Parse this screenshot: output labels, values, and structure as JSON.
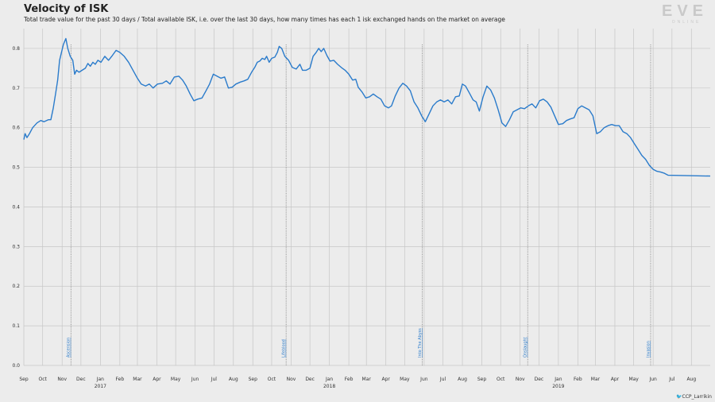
{
  "title": "Velocity of ISK",
  "subtitle": "Total trade value for the past 30 days / Total available ISK, i.e. over the last 30 days, how many times has each 1 isk exchanged hands on the market on average",
  "logo": {
    "text": "EVE",
    "subtext": "ONLINE"
  },
  "credit": {
    "icon": "twitter-bird-icon",
    "handle": "CCP_Larrikin"
  },
  "colors": {
    "line": "#2a7bcb",
    "grid": "#c6c6c6",
    "annotation": "#2a7bcb",
    "background": "#ececec"
  },
  "chart_data": {
    "type": "line",
    "title": "Velocity of ISK",
    "xlabel": "",
    "ylabel": "",
    "x_range": [
      "2016-09-01",
      "2019-08-31"
    ],
    "ylim": [
      0,
      0.85
    ],
    "yticks": [
      "0.0",
      "0.1",
      "0.2",
      "0.3",
      "0.4",
      "0.5",
      "0.6",
      "0.7",
      "0.8"
    ],
    "grid": true,
    "xticks": [
      {
        "month": "Sep",
        "year": ""
      },
      {
        "month": "Oct",
        "year": ""
      },
      {
        "month": "Nov",
        "year": ""
      },
      {
        "month": "Dec",
        "year": ""
      },
      {
        "month": "Jan",
        "year": "2017"
      },
      {
        "month": "Feb",
        "year": ""
      },
      {
        "month": "Mar",
        "year": ""
      },
      {
        "month": "Apr",
        "year": ""
      },
      {
        "month": "May",
        "year": ""
      },
      {
        "month": "Jun",
        "year": ""
      },
      {
        "month": "Jul",
        "year": ""
      },
      {
        "month": "Aug",
        "year": ""
      },
      {
        "month": "Sep",
        "year": ""
      },
      {
        "month": "Oct",
        "year": ""
      },
      {
        "month": "Nov",
        "year": ""
      },
      {
        "month": "Dec",
        "year": ""
      },
      {
        "month": "Jan",
        "year": "2018"
      },
      {
        "month": "Feb",
        "year": ""
      },
      {
        "month": "Mar",
        "year": ""
      },
      {
        "month": "Apr",
        "year": ""
      },
      {
        "month": "May",
        "year": ""
      },
      {
        "month": "Jun",
        "year": ""
      },
      {
        "month": "Jul",
        "year": ""
      },
      {
        "month": "Aug",
        "year": ""
      },
      {
        "month": "Sep",
        "year": ""
      },
      {
        "month": "Oct",
        "year": ""
      },
      {
        "month": "Nov",
        "year": ""
      },
      {
        "month": "Dec",
        "year": ""
      },
      {
        "month": "Jan",
        "year": "2019"
      },
      {
        "month": "Feb",
        "year": ""
      },
      {
        "month": "Mar",
        "year": ""
      },
      {
        "month": "Apr",
        "year": ""
      },
      {
        "month": "May",
        "year": ""
      },
      {
        "month": "Jun",
        "year": ""
      },
      {
        "month": "Jul",
        "year": ""
      },
      {
        "month": "Aug",
        "year": ""
      }
    ],
    "annotations": [
      {
        "label": "Ascension",
        "date": "2016-11-15"
      },
      {
        "label": "Lifeblood",
        "date": "2017-10-24"
      },
      {
        "label": "Into The Abyss",
        "date": "2018-05-29"
      },
      {
        "label": "Onslaught",
        "date": "2018-11-13"
      },
      {
        "label": "Invasion",
        "date": "2019-05-28"
      }
    ],
    "series": [
      {
        "color": "#2a7bcb",
        "points": [
          [
            "2016-09-01",
            0.57
          ],
          [
            "2016-09-03",
            0.585
          ],
          [
            "2016-09-06",
            0.575
          ],
          [
            "2016-09-10",
            0.585
          ],
          [
            "2016-09-15",
            0.6
          ],
          [
            "2016-09-22",
            0.612
          ],
          [
            "2016-09-28",
            0.618
          ],
          [
            "2016-10-03",
            0.615
          ],
          [
            "2016-10-10",
            0.62
          ],
          [
            "2016-10-14",
            0.62
          ],
          [
            "2016-10-18",
            0.65
          ],
          [
            "2016-10-22",
            0.69
          ],
          [
            "2016-10-25",
            0.72
          ],
          [
            "2016-10-28",
            0.77
          ],
          [
            "2016-10-31",
            0.79
          ],
          [
            "2016-11-03",
            0.81
          ],
          [
            "2016-11-07",
            0.825
          ],
          [
            "2016-11-10",
            0.8
          ],
          [
            "2016-11-14",
            0.78
          ],
          [
            "2016-11-18",
            0.77
          ],
          [
            "2016-11-21",
            0.735
          ],
          [
            "2016-11-24",
            0.745
          ],
          [
            "2016-11-28",
            0.74
          ],
          [
            "2016-12-03",
            0.745
          ],
          [
            "2016-12-08",
            0.75
          ],
          [
            "2016-12-12",
            0.762
          ],
          [
            "2016-12-16",
            0.755
          ],
          [
            "2016-12-20",
            0.765
          ],
          [
            "2016-12-24",
            0.76
          ],
          [
            "2016-12-28",
            0.77
          ],
          [
            "2017-01-02",
            0.765
          ],
          [
            "2017-01-08",
            0.78
          ],
          [
            "2017-01-14",
            0.77
          ],
          [
            "2017-01-20",
            0.782
          ],
          [
            "2017-01-26",
            0.795
          ],
          [
            "2017-02-01",
            0.79
          ],
          [
            "2017-02-08",
            0.78
          ],
          [
            "2017-02-15",
            0.765
          ],
          [
            "2017-02-22",
            0.745
          ],
          [
            "2017-03-01",
            0.725
          ],
          [
            "2017-03-07",
            0.71
          ],
          [
            "2017-03-14",
            0.705
          ],
          [
            "2017-03-20",
            0.71
          ],
          [
            "2017-03-26",
            0.7
          ],
          [
            "2017-04-02",
            0.71
          ],
          [
            "2017-04-10",
            0.712
          ],
          [
            "2017-04-16",
            0.718
          ],
          [
            "2017-04-22",
            0.71
          ],
          [
            "2017-04-29",
            0.728
          ],
          [
            "2017-05-06",
            0.73
          ],
          [
            "2017-05-12",
            0.72
          ],
          [
            "2017-05-18",
            0.705
          ],
          [
            "2017-05-24",
            0.685
          ],
          [
            "2017-05-30",
            0.668
          ],
          [
            "2017-06-05",
            0.672
          ],
          [
            "2017-06-12",
            0.675
          ],
          [
            "2017-06-18",
            0.692
          ],
          [
            "2017-06-24",
            0.71
          ],
          [
            "2017-06-30",
            0.735
          ],
          [
            "2017-07-06",
            0.73
          ],
          [
            "2017-07-12",
            0.725
          ],
          [
            "2017-07-18",
            0.728
          ],
          [
            "2017-07-24",
            0.7
          ],
          [
            "2017-07-30",
            0.702
          ],
          [
            "2017-08-05",
            0.71
          ],
          [
            "2017-08-12",
            0.715
          ],
          [
            "2017-08-18",
            0.718
          ],
          [
            "2017-08-24",
            0.722
          ],
          [
            "2017-08-30",
            0.74
          ],
          [
            "2017-09-04",
            0.752
          ],
          [
            "2017-09-08",
            0.765
          ],
          [
            "2017-09-12",
            0.768
          ],
          [
            "2017-09-16",
            0.775
          ],
          [
            "2017-09-20",
            0.772
          ],
          [
            "2017-09-23",
            0.78
          ],
          [
            "2017-09-27",
            0.765
          ],
          [
            "2017-10-01",
            0.775
          ],
          [
            "2017-10-06",
            0.778
          ],
          [
            "2017-10-10",
            0.79
          ],
          [
            "2017-10-13",
            0.805
          ],
          [
            "2017-10-17",
            0.8
          ],
          [
            "2017-10-22",
            0.78
          ],
          [
            "2017-10-28",
            0.77
          ],
          [
            "2017-11-03",
            0.752
          ],
          [
            "2017-11-09",
            0.748
          ],
          [
            "2017-11-15",
            0.76
          ],
          [
            "2017-11-19",
            0.745
          ],
          [
            "2017-11-25",
            0.745
          ],
          [
            "2017-12-01",
            0.75
          ],
          [
            "2017-12-06",
            0.78
          ],
          [
            "2017-12-11",
            0.79
          ],
          [
            "2017-12-15",
            0.8
          ],
          [
            "2017-12-19",
            0.792
          ],
          [
            "2017-12-23",
            0.8
          ],
          [
            "2017-12-28",
            0.782
          ],
          [
            "2018-01-02",
            0.768
          ],
          [
            "2018-01-08",
            0.77
          ],
          [
            "2018-01-14",
            0.76
          ],
          [
            "2018-01-20",
            0.752
          ],
          [
            "2018-01-26",
            0.745
          ],
          [
            "2018-02-01",
            0.735
          ],
          [
            "2018-02-07",
            0.72
          ],
          [
            "2018-02-12",
            0.722
          ],
          [
            "2018-02-16",
            0.702
          ],
          [
            "2018-02-22",
            0.69
          ],
          [
            "2018-02-28",
            0.675
          ],
          [
            "2018-03-06",
            0.678
          ],
          [
            "2018-03-12",
            0.685
          ],
          [
            "2018-03-18",
            0.678
          ],
          [
            "2018-03-24",
            0.672
          ],
          [
            "2018-03-30",
            0.655
          ],
          [
            "2018-04-05",
            0.65
          ],
          [
            "2018-04-10",
            0.655
          ],
          [
            "2018-04-16",
            0.68
          ],
          [
            "2018-04-22",
            0.7
          ],
          [
            "2018-04-28",
            0.712
          ],
          [
            "2018-05-04",
            0.705
          ],
          [
            "2018-05-10",
            0.693
          ],
          [
            "2018-05-16",
            0.665
          ],
          [
            "2018-05-22",
            0.65
          ],
          [
            "2018-05-28",
            0.63
          ],
          [
            "2018-06-03",
            0.615
          ],
          [
            "2018-06-09",
            0.635
          ],
          [
            "2018-06-15",
            0.655
          ],
          [
            "2018-06-21",
            0.665
          ],
          [
            "2018-06-27",
            0.67
          ],
          [
            "2018-07-03",
            0.665
          ],
          [
            "2018-07-09",
            0.67
          ],
          [
            "2018-07-15",
            0.66
          ],
          [
            "2018-07-21",
            0.678
          ],
          [
            "2018-07-27",
            0.68
          ],
          [
            "2018-08-01",
            0.71
          ],
          [
            "2018-08-06",
            0.705
          ],
          [
            "2018-08-12",
            0.688
          ],
          [
            "2018-08-18",
            0.67
          ],
          [
            "2018-08-23",
            0.665
          ],
          [
            "2018-08-28",
            0.642
          ],
          [
            "2018-09-03",
            0.678
          ],
          [
            "2018-09-09",
            0.705
          ],
          [
            "2018-09-15",
            0.695
          ],
          [
            "2018-09-21",
            0.675
          ],
          [
            "2018-09-27",
            0.645
          ],
          [
            "2018-10-03",
            0.612
          ],
          [
            "2018-10-09",
            0.603
          ],
          [
            "2018-10-15",
            0.62
          ],
          [
            "2018-10-21",
            0.64
          ],
          [
            "2018-10-27",
            0.645
          ],
          [
            "2018-11-02",
            0.65
          ],
          [
            "2018-11-08",
            0.648
          ],
          [
            "2018-11-14",
            0.655
          ],
          [
            "2018-11-20",
            0.66
          ],
          [
            "2018-11-26",
            0.65
          ],
          [
            "2018-12-02",
            0.668
          ],
          [
            "2018-12-08",
            0.672
          ],
          [
            "2018-12-14",
            0.665
          ],
          [
            "2018-12-20",
            0.652
          ],
          [
            "2018-12-26",
            0.63
          ],
          [
            "2019-01-01",
            0.608
          ],
          [
            "2019-01-08",
            0.61
          ],
          [
            "2019-01-14",
            0.618
          ],
          [
            "2019-01-20",
            0.622
          ],
          [
            "2019-01-26",
            0.625
          ],
          [
            "2019-02-01",
            0.648
          ],
          [
            "2019-02-07",
            0.655
          ],
          [
            "2019-02-13",
            0.65
          ],
          [
            "2019-02-19",
            0.645
          ],
          [
            "2019-02-25",
            0.63
          ],
          [
            "2019-03-03",
            0.585
          ],
          [
            "2019-03-09",
            0.59
          ],
          [
            "2019-03-15",
            0.6
          ],
          [
            "2019-03-21",
            0.605
          ],
          [
            "2019-03-27",
            0.608
          ],
          [
            "2019-04-02",
            0.605
          ],
          [
            "2019-04-08",
            0.605
          ],
          [
            "2019-04-14",
            0.59
          ],
          [
            "2019-04-20",
            0.585
          ],
          [
            "2019-04-26",
            0.575
          ],
          [
            "2019-05-02",
            0.56
          ],
          [
            "2019-05-08",
            0.545
          ],
          [
            "2019-05-14",
            0.53
          ],
          [
            "2019-05-20",
            0.52
          ],
          [
            "2019-05-26",
            0.505
          ],
          [
            "2019-06-01",
            0.495
          ],
          [
            "2019-06-07",
            0.49
          ],
          [
            "2019-06-13",
            0.488
          ],
          [
            "2019-06-19",
            0.485
          ],
          [
            "2019-06-25",
            0.48
          ],
          [
            "2019-08-31",
            0.478
          ]
        ]
      }
    ]
  }
}
